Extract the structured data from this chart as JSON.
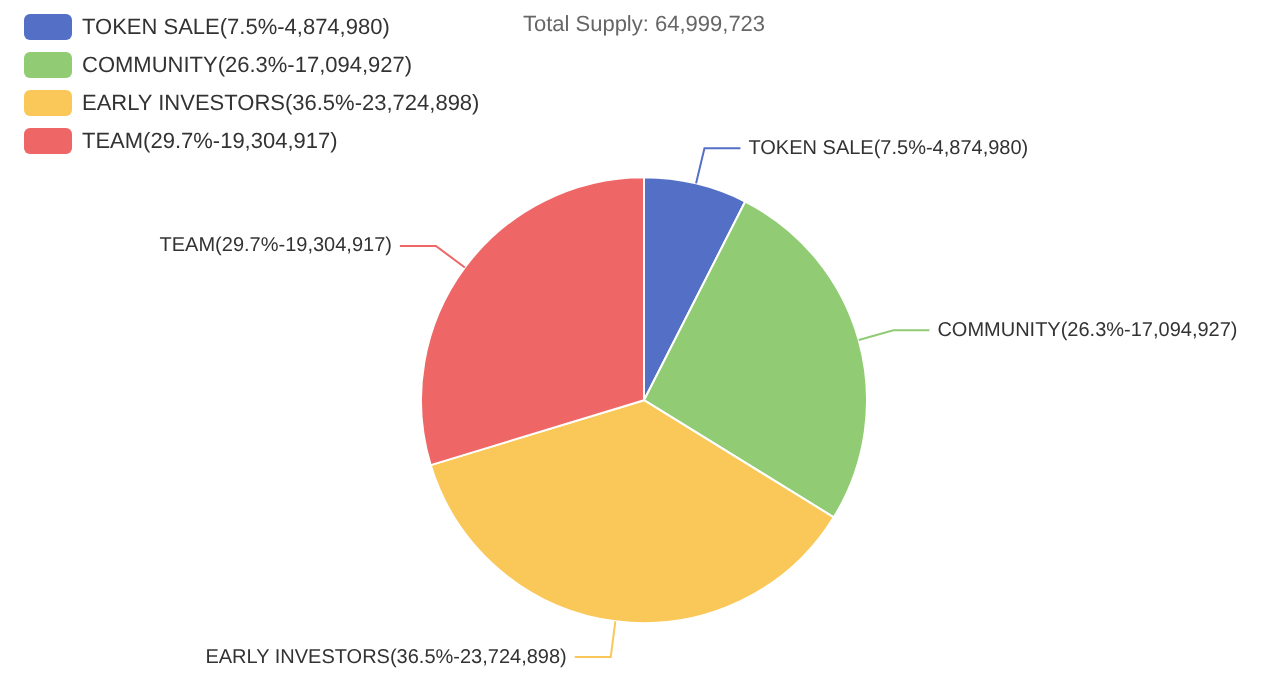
{
  "chart_data": {
    "type": "pie",
    "title": "Total Supply: 64,999,723",
    "categories": [
      "TOKEN SALE(7.5%-4,874,980)",
      "COMMUNITY(26.3%-17,094,927)",
      "EARLY INVESTORS(36.5%-23,724,898)",
      "TEAM(29.7%-19,304,917)"
    ],
    "values": [
      7.5,
      26.3,
      36.5,
      29.7
    ],
    "colors": [
      "#5470c6",
      "#91cc75",
      "#fac858",
      "#ee6666"
    ],
    "legend": "top left"
  }
}
